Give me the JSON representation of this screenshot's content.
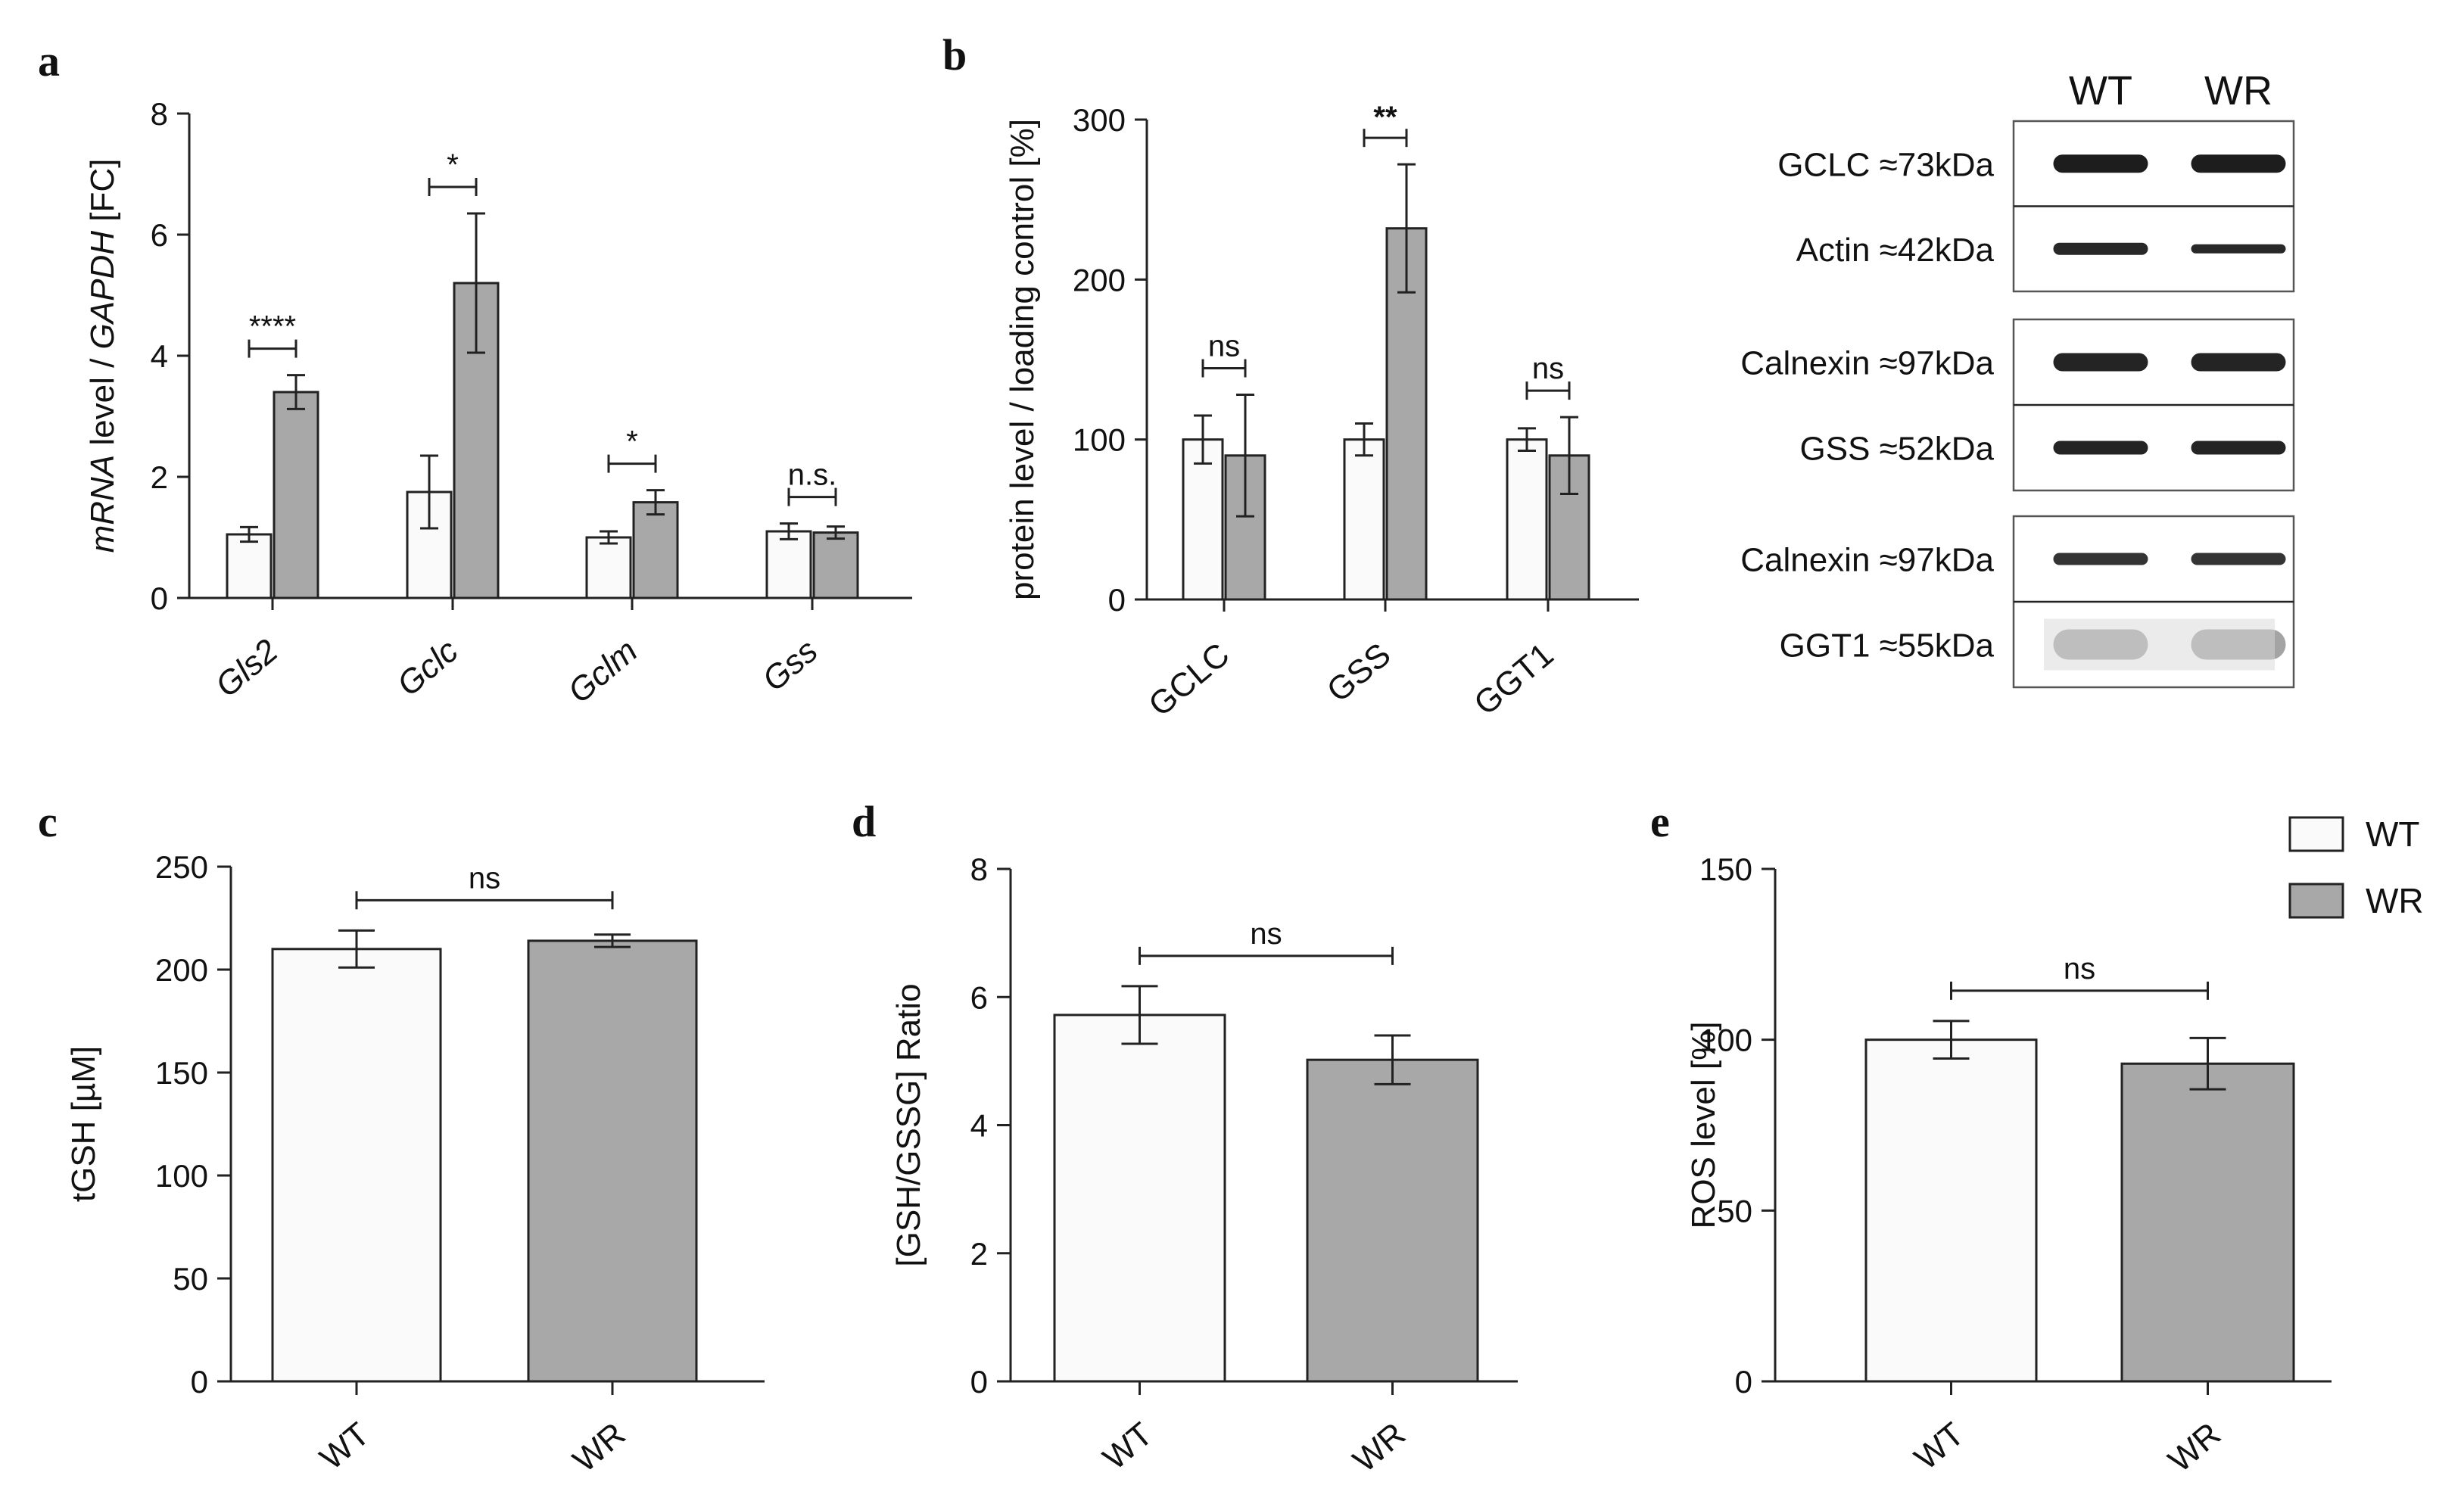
{
  "colors": {
    "wt": "#fafafa",
    "wr": "#a8a8a8",
    "axis": "#222222"
  },
  "chart_data": [
    {
      "panel": "a",
      "type": "bar",
      "ylabel_parts": [
        {
          "text": "mRNA",
          "italic": true
        },
        {
          "text": " level / ",
          "italic": false
        },
        {
          "text": "GAPDH",
          "italic": true
        },
        {
          "text": " [FC]",
          "italic": false
        }
      ],
      "ylim": [
        0,
        8
      ],
      "yticks": [
        0,
        2,
        4,
        6,
        8
      ],
      "categories": [
        "Gls2",
        "Gclc",
        "Gclm",
        "Gss"
      ],
      "category_italic": true,
      "series": [
        {
          "name": "WT",
          "values": [
            1.05,
            1.75,
            1.0,
            1.1
          ],
          "errors": [
            0.12,
            0.6,
            0.1,
            0.13
          ]
        },
        {
          "name": "WR",
          "values": [
            3.4,
            5.2,
            1.58,
            1.08
          ],
          "errors": [
            0.28,
            1.15,
            0.2,
            0.1
          ]
        }
      ],
      "significance": [
        "****",
        "*",
        "*",
        "n.s."
      ]
    },
    {
      "panel": "b",
      "type": "bar",
      "ylabel": "protein level / loading control [%]",
      "ylim": [
        0,
        300
      ],
      "yticks": [
        0,
        100,
        200,
        300
      ],
      "categories": [
        "GCLC",
        "GSS",
        "GGT1"
      ],
      "series": [
        {
          "name": "WT",
          "values": [
            100,
            100,
            100
          ],
          "errors": [
            15,
            10,
            7
          ]
        },
        {
          "name": "WR",
          "values": [
            90,
            232,
            90
          ],
          "errors": [
            38,
            40,
            24
          ]
        }
      ],
      "significance": [
        "ns",
        "**",
        "ns"
      ]
    },
    {
      "panel": "c",
      "type": "bar",
      "ylabel": "tGSH [µM]",
      "ylim": [
        0,
        250
      ],
      "yticks": [
        0,
        50,
        100,
        150,
        200,
        250
      ],
      "categories": [
        "WT",
        "WR"
      ],
      "values": [
        210,
        214
      ],
      "errors": [
        9,
        3
      ],
      "significance": [
        "ns"
      ]
    },
    {
      "panel": "d",
      "type": "bar",
      "ylabel": "[GSH/GSSG] Ratio",
      "ylim": [
        0,
        8
      ],
      "yticks": [
        0,
        2,
        4,
        6,
        8
      ],
      "categories": [
        "WT",
        "WR"
      ],
      "values": [
        5.72,
        5.02
      ],
      "errors": [
        0.45,
        0.38
      ],
      "significance": [
        "ns"
      ]
    },
    {
      "panel": "e",
      "type": "bar",
      "ylabel": "ROS level [%]",
      "ylim": [
        0,
        150
      ],
      "yticks": [
        0,
        50,
        100,
        150
      ],
      "categories": [
        "WT",
        "WR"
      ],
      "values": [
        100,
        93
      ],
      "errors": [
        5.5,
        7.5
      ],
      "significance": [
        "ns"
      ]
    }
  ],
  "blot": {
    "headers": [
      "WT",
      "WR"
    ],
    "groups": [
      {
        "labels": [
          "GCLC ≈73kDa",
          "Actin ≈42kDa"
        ]
      },
      {
        "labels": [
          "Calnexin ≈97kDa",
          "GSS ≈52kDa"
        ]
      },
      {
        "labels": [
          "Calnexin ≈97kDa",
          "GGT1 ≈55kDa"
        ]
      }
    ]
  },
  "legend": [
    {
      "label": "WT",
      "color": "#fafafa"
    },
    {
      "label": "WR",
      "color": "#a8a8a8"
    }
  ]
}
